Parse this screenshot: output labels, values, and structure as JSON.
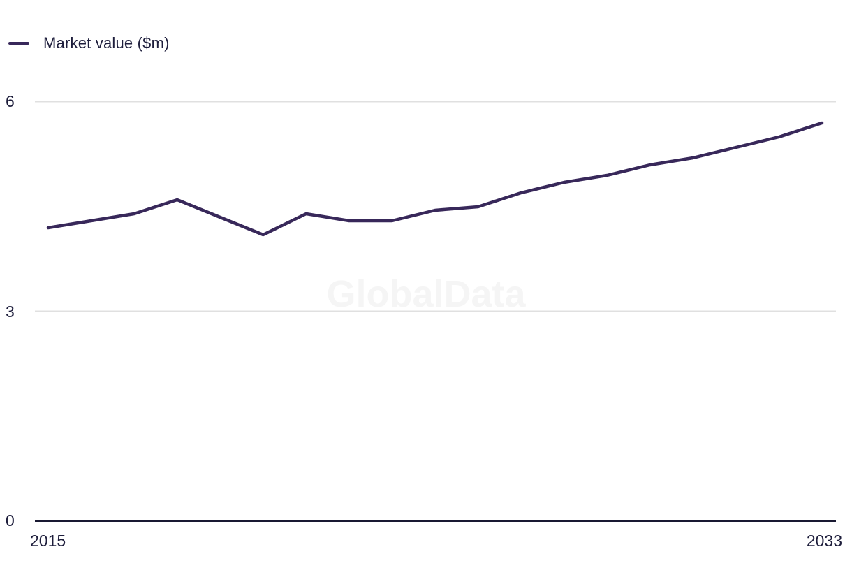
{
  "chart_data": {
    "type": "line",
    "legend": "Market value ($m)",
    "x": [
      2015,
      2016,
      2017,
      2018,
      2019,
      2020,
      2021,
      2022,
      2023,
      2024,
      2025,
      2026,
      2027,
      2028,
      2029,
      2030,
      2031,
      2032,
      2033
    ],
    "series": [
      {
        "name": "Market value ($m)",
        "values": [
          4.2,
          4.3,
          4.4,
          4.6,
          4.35,
          4.1,
          4.4,
          4.3,
          4.3,
          4.45,
          4.5,
          4.7,
          4.85,
          4.95,
          5.1,
          5.2,
          5.35,
          5.5,
          5.7
        ]
      }
    ],
    "xlabel": "",
    "ylabel": "",
    "title": "",
    "ylim": [
      0,
      6
    ],
    "y_ticks": [
      0,
      3,
      6
    ],
    "y_tick_labels": [
      "0",
      "3",
      "6"
    ],
    "x_tick_labels": [
      "2015",
      "2033"
    ],
    "grid": "horizontal-only",
    "legend_position": "top-left"
  },
  "watermark": {
    "text": "GlobalData"
  },
  "colors": {
    "series_line": "#38285a",
    "axis_text": "#1e1e3c",
    "gridline": "#e0e0e0",
    "axis_line": "#191932",
    "watermark": "#f5f5f5",
    "background": "#ffffff"
  }
}
